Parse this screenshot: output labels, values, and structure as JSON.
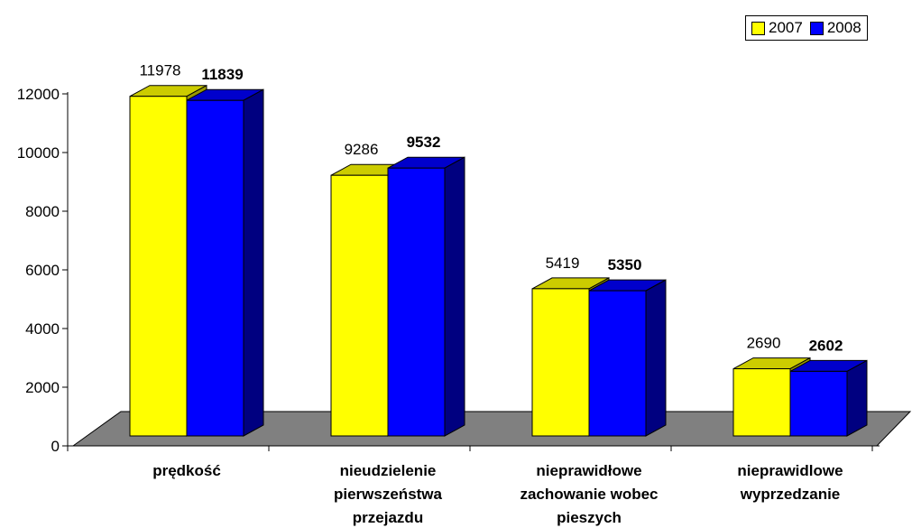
{
  "chart_data": {
    "type": "bar",
    "categories": [
      [
        "prędkość"
      ],
      [
        "nieudzielenie",
        "pierwszeństwa",
        "przejazdu"
      ],
      [
        "nieprawidłowe",
        "zachowanie wobec",
        "pieszych"
      ],
      [
        "nieprawidlowe",
        "wyprzedzanie"
      ]
    ],
    "series": [
      {
        "name": "2007",
        "values": [
          11978,
          9286,
          5419,
          2690
        ],
        "color": "#FFFF00",
        "top_color": "#CCCC00",
        "side_color": "#999900"
      },
      {
        "name": "2008",
        "values": [
          11839,
          9532,
          5350,
          2602
        ],
        "color": "#0000FF",
        "top_color": "#0000CC",
        "side_color": "#000080"
      }
    ],
    "y_ticks": [
      "0",
      "2000",
      "4000",
      "6000",
      "8000",
      "10000",
      "12000"
    ],
    "ylim": [
      0,
      12000
    ],
    "legend_position": "top-right",
    "grid": false
  }
}
